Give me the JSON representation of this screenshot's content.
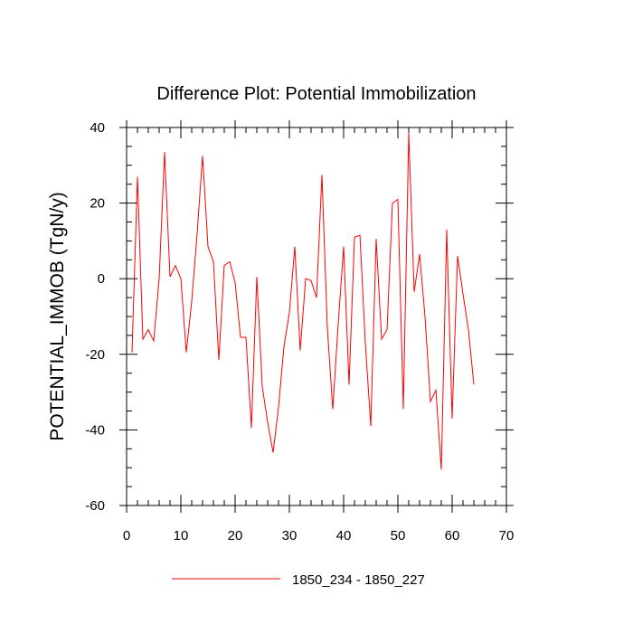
{
  "chart_data": {
    "type": "line",
    "title": "Difference Plot: Potential Immobilization",
    "xlabel": "",
    "ylabel": "POTENTIAL_IMMOB  (TgN/y)",
    "xlim": [
      0,
      70
    ],
    "ylim": [
      -60,
      40
    ],
    "xticks": [
      0,
      10,
      20,
      30,
      40,
      50,
      60,
      70
    ],
    "yticks": [
      -60,
      -40,
      -20,
      0,
      20,
      40
    ],
    "xtick_labels": [
      "0",
      "10",
      "20",
      "30",
      "40",
      "50",
      "60",
      "70"
    ],
    "ytick_labels": [
      "-60",
      "-40",
      "-20",
      "0",
      "20",
      "40"
    ],
    "grid": false,
    "legend_position": "bottom-center",
    "series": [
      {
        "name": "1850_234 - 1850_227",
        "color": "#ff0000",
        "x": [
          1,
          2,
          3,
          4,
          5,
          6,
          7,
          8,
          9,
          10,
          11,
          12,
          13,
          14,
          15,
          16,
          17,
          18,
          19,
          20,
          21,
          22,
          23,
          24,
          25,
          26,
          27,
          28,
          29,
          30,
          31,
          32,
          33,
          34,
          35,
          36,
          37,
          38,
          39,
          40,
          41,
          42,
          43,
          44,
          45,
          46,
          47,
          48,
          49,
          50,
          51,
          52,
          53,
          54,
          55,
          56,
          57,
          58,
          59,
          60,
          61,
          62,
          63,
          64
        ],
        "values": [
          -19.5,
          27,
          -16,
          -13.5,
          -16.5,
          0,
          33.5,
          0.5,
          3.5,
          0,
          -19.5,
          -6,
          12,
          32.5,
          8.5,
          4.5,
          -21.5,
          3.5,
          4.5,
          -1,
          -15.5,
          -15.5,
          -39.5,
          0.5,
          -28.5,
          -38,
          -46,
          -34,
          -18,
          -9,
          8.5,
          -19,
          0,
          -0.5,
          -5,
          27.5,
          -13,
          -34.5,
          -12,
          8.5,
          -28,
          11,
          11.5,
          -17,
          -39,
          10.5,
          -16,
          -13.5,
          20,
          21,
          -34.5,
          38.5,
          -3.5,
          6.5,
          -10,
          -32.5,
          -29.5,
          -50.5,
          13,
          -37,
          6,
          -4,
          -13.5,
          -28
        ]
      }
    ]
  }
}
